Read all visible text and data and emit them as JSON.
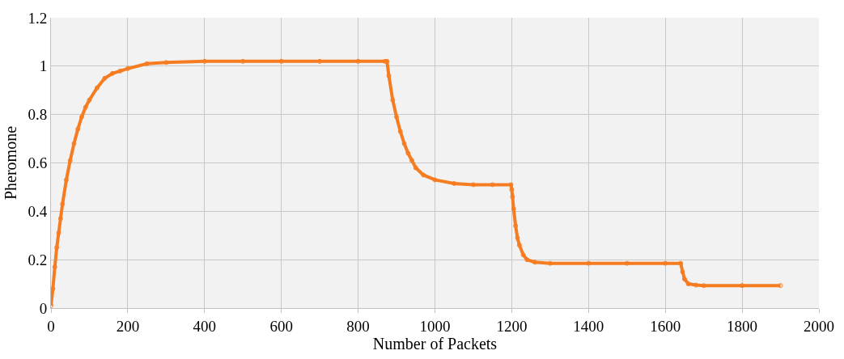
{
  "chart_data": {
    "type": "line",
    "xlabel": "Number of Packets",
    "ylabel": "Pheromone",
    "x": [
      0,
      5,
      10,
      15,
      20,
      25,
      30,
      40,
      50,
      60,
      70,
      80,
      90,
      100,
      120,
      140,
      160,
      180,
      200,
      250,
      300,
      400,
      500,
      600,
      700,
      800,
      870,
      875,
      880,
      890,
      900,
      910,
      920,
      930,
      940,
      950,
      970,
      1000,
      1050,
      1100,
      1150,
      1198,
      1200,
      1202,
      1205,
      1210,
      1215,
      1220,
      1230,
      1240,
      1260,
      1300,
      1400,
      1500,
      1600,
      1640,
      1645,
      1650,
      1660,
      1680,
      1700,
      1800,
      1900
    ],
    "series": [
      {
        "color": "#f57c20",
        "values": [
          0.01,
          0.08,
          0.17,
          0.25,
          0.31,
          0.37,
          0.43,
          0.53,
          0.61,
          0.68,
          0.74,
          0.79,
          0.83,
          0.86,
          0.91,
          0.95,
          0.97,
          0.98,
          0.99,
          1.01,
          1.015,
          1.02,
          1.02,
          1.02,
          1.02,
          1.02,
          1.02,
          1.02,
          0.96,
          0.86,
          0.79,
          0.73,
          0.68,
          0.64,
          0.61,
          0.58,
          0.55,
          0.53,
          0.515,
          0.51,
          0.51,
          0.51,
          0.49,
          0.46,
          0.41,
          0.34,
          0.29,
          0.26,
          0.22,
          0.2,
          0.19,
          0.185,
          0.185,
          0.185,
          0.185,
          0.185,
          0.15,
          0.12,
          0.1,
          0.095,
          0.093,
          0.093,
          0.093
        ]
      }
    ],
    "xlim": [
      0,
      2000
    ],
    "xticks": [
      0,
      200,
      400,
      600,
      800,
      1000,
      1200,
      1400,
      1600,
      1800,
      2000
    ],
    "ylim": [
      0,
      1.2
    ],
    "yticks": [
      0,
      0.2,
      0.4,
      0.6,
      0.8,
      1,
      1.2
    ],
    "grid": true,
    "marker": "circle",
    "line_style": "solid",
    "legend": false
  }
}
